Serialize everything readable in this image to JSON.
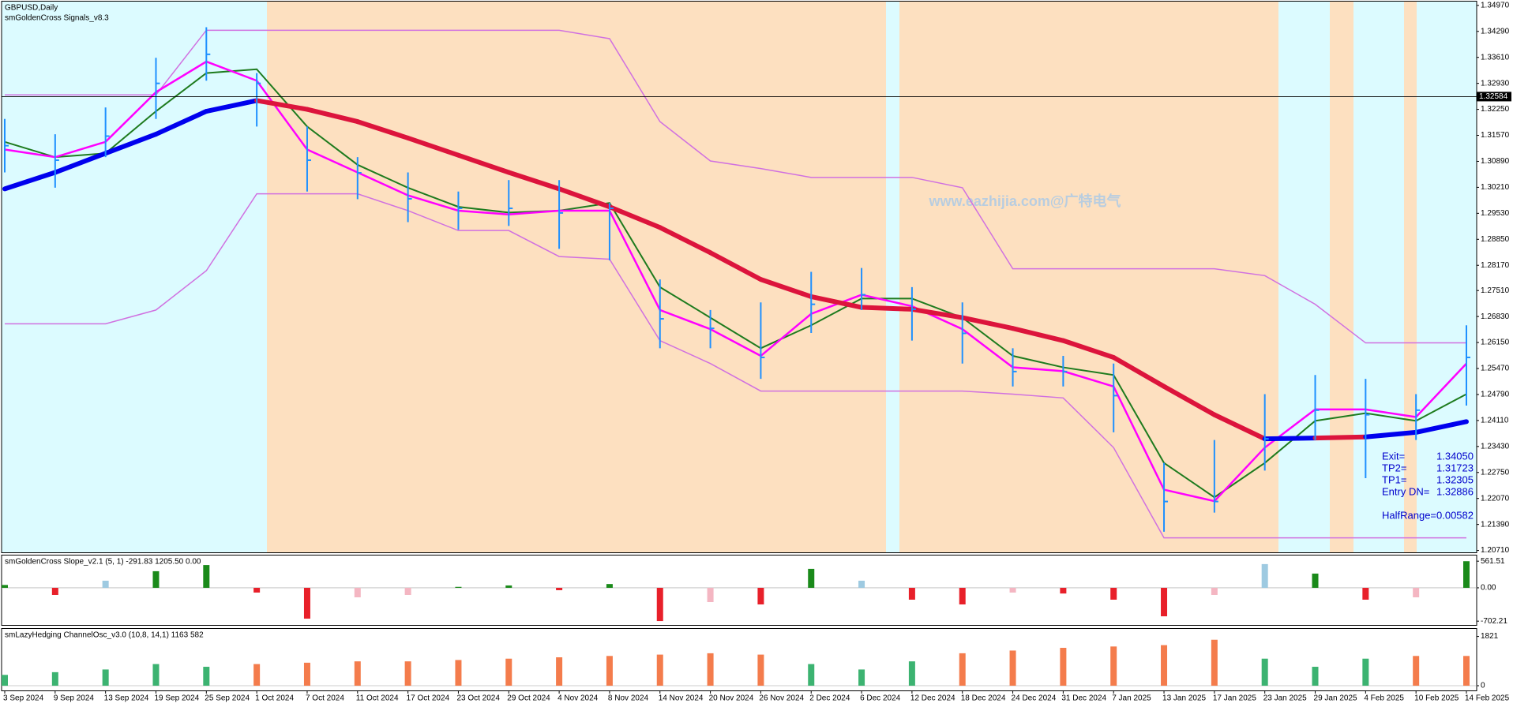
{
  "header": {
    "symbol": "GBPUSD,Daily",
    "indicator": "smGoldenCross Signals_v8.3"
  },
  "watermark": "www.eazhijia.com@广特电气",
  "chart_data": [
    {
      "type": "ohlc",
      "current_price": 1.32584,
      "categories": [
        "3 Sep 2024",
        "9 Sep 2024",
        "13 Sep 2024",
        "19 Sep 2024",
        "25 Sep 2024",
        "1 Oct 2024",
        "7 Oct 2024",
        "11 Oct 2024",
        "17 Oct 2024",
        "23 Oct 2024",
        "29 Oct 2024",
        "4 Nov 2024",
        "8 Nov 2024",
        "14 Nov 2024",
        "20 Nov 2024",
        "26 Nov 2024",
        "2 Dec 2024",
        "6 Dec 2024",
        "12 Dec 2024",
        "18 Dec 2024",
        "24 Dec 2024",
        "31 Dec 2024",
        "7 Jan 2025",
        "13 Jan 2025",
        "17 Jan 2025",
        "23 Jan 2025",
        "29 Jan 2025",
        "4 Feb 2025",
        "10 Feb 2025",
        "14 Feb 2025"
      ],
      "high": [
        1.32,
        1.316,
        1.323,
        1.336,
        1.344,
        1.332,
        1.318,
        1.31,
        1.306,
        1.301,
        1.304,
        1.304,
        1.298,
        1.278,
        1.27,
        1.272,
        1.28,
        1.281,
        1.276,
        1.272,
        1.26,
        1.258,
        1.256,
        1.23,
        1.236,
        1.248,
        1.253,
        1.252,
        1.248,
        1.266
      ],
      "low": [
        1.306,
        1.302,
        1.31,
        1.32,
        1.33,
        1.318,
        1.301,
        1.299,
        1.293,
        1.291,
        1.292,
        1.286,
        1.283,
        1.26,
        1.26,
        1.252,
        1.264,
        1.27,
        1.262,
        1.256,
        1.25,
        1.25,
        1.238,
        1.212,
        1.217,
        1.228,
        1.236,
        1.226,
        1.236,
        1.245
      ],
      "close": [
        1.313,
        1.3092,
        1.3155,
        1.3293,
        1.3369,
        1.3293,
        1.3092,
        1.3059,
        1.2991,
        1.2966,
        1.2966,
        1.2954,
        1.2966,
        1.2677,
        1.2652,
        1.2576,
        1.2715,
        1.274,
        1.2702,
        1.2639,
        1.2539,
        1.2539,
        1.2476,
        1.2199,
        1.2199,
        1.2363,
        1.2438,
        1.2426,
        1.2438,
        1.2576
      ],
      "bar_color": "#1e90ff",
      "series": [
        {
          "color": "#d070e0",
          "width": 1.5,
          "values": [
            1.3263,
            1.3263,
            1.3263,
            1.3263,
            1.3432,
            1.3432,
            1.3432,
            1.3432,
            1.3432,
            1.3432,
            1.3432,
            1.3432,
            1.341,
            1.3193,
            1.309,
            1.307,
            1.3047,
            1.3047,
            1.3047,
            1.302,
            1.2808,
            1.2808,
            1.2808,
            1.2808,
            1.2808,
            1.279,
            1.2715,
            1.2614,
            1.2614,
            1.2614
          ]
        },
        {
          "color": "#d070e0",
          "width": 1.5,
          "values": [
            1.2664,
            1.2664,
            1.2664,
            1.27,
            1.2803,
            1.3004,
            1.3004,
            1.3004,
            1.296,
            1.2908,
            1.2908,
            1.284,
            1.2833,
            1.262,
            1.256,
            1.2488,
            1.2488,
            1.2488,
            1.2488,
            1.2488,
            1.248,
            1.247,
            1.234,
            1.2104,
            1.2104,
            1.2104,
            1.2104,
            1.2104,
            1.2104,
            1.2104
          ]
        },
        {
          "color": "#1e7b1e",
          "width": 2,
          "values": [
            1.314,
            1.31,
            1.311,
            1.322,
            1.332,
            1.333,
            1.318,
            1.308,
            1.302,
            1.297,
            1.2955,
            1.296,
            1.298,
            1.276,
            1.268,
            1.26,
            1.266,
            1.273,
            1.273,
            1.268,
            1.258,
            1.255,
            1.253,
            1.23,
            1.221,
            1.23,
            1.241,
            1.243,
            1.241,
            1.248
          ]
        },
        {
          "color": "#ff00ff",
          "width": 2.5,
          "values": [
            1.312,
            1.31,
            1.314,
            1.327,
            1.335,
            1.33,
            1.312,
            1.306,
            1.3,
            1.296,
            1.295,
            1.296,
            1.296,
            1.27,
            1.265,
            1.258,
            1.269,
            1.274,
            1.271,
            1.265,
            1.255,
            1.254,
            1.25,
            1.223,
            1.22,
            1.234,
            1.244,
            1.244,
            1.242,
            1.256
          ]
        },
        {
          "width": 6,
          "values": [
            1.3017,
            1.306,
            1.311,
            1.316,
            1.322,
            1.3248,
            1.3225,
            1.3193,
            1.315,
            1.3105,
            1.306,
            1.3017,
            1.297,
            1.2916,
            1.285,
            1.278,
            1.2735,
            1.2707,
            1.2702,
            1.268,
            1.2652,
            1.262,
            1.2576,
            1.25,
            1.2426,
            1.2363,
            1.2365,
            1.2368,
            1.238,
            1.2408
          ],
          "colors": [
            "#0000ee",
            "#0000ee",
            "#0000ee",
            "#0000ee",
            "#0000ee",
            "#0000ee",
            "#dc143c",
            "#dc143c",
            "#dc143c",
            "#dc143c",
            "#dc143c",
            "#dc143c",
            "#dc143c",
            "#dc143c",
            "#dc143c",
            "#dc143c",
            "#dc143c",
            "#dc143c",
            "#dc143c",
            "#dc143c",
            "#dc143c",
            "#dc143c",
            "#dc143c",
            "#dc143c",
            "#dc143c",
            "#dc143c",
            "#0000ee",
            "#dc143c",
            "#0000ee",
            "#0000ee"
          ]
        }
      ],
      "ylim": [
        1.2066,
        1.3507
      ],
      "yticks": [
        {
          "value": 1.3497,
          "label": "1.34970"
        },
        {
          "value": 1.3429,
          "label": "1.34290"
        },
        {
          "value": 1.3361,
          "label": "1.33610"
        },
        {
          "value": 1.3293,
          "label": "1.32930"
        },
        {
          "value": 1.3225,
          "label": "1.32250"
        },
        {
          "value": 1.3157,
          "label": "1.31570"
        },
        {
          "value": 1.3089,
          "label": "1.30890"
        },
        {
          "value": 1.3021,
          "label": "1.30210"
        },
        {
          "value": 1.2953,
          "label": "1.29530"
        },
        {
          "value": 1.2885,
          "label": "1.28850"
        },
        {
          "value": 1.2817,
          "label": "1.28170"
        },
        {
          "value": 1.2751,
          "label": "1.27510"
        },
        {
          "value": 1.2683,
          "label": "1.26830"
        },
        {
          "value": 1.2615,
          "label": "1.26150"
        },
        {
          "value": 1.2547,
          "label": "1.25470"
        },
        {
          "value": 1.2479,
          "label": "1.24790"
        },
        {
          "value": 1.2411,
          "label": "1.24110"
        },
        {
          "value": 1.2343,
          "label": "1.23430"
        },
        {
          "value": 1.2275,
          "label": "1.22750"
        },
        {
          "value": 1.2207,
          "label": "1.22070"
        },
        {
          "value": 1.2139,
          "label": "1.21390"
        },
        {
          "value": 1.2071,
          "label": "1.20710"
        }
      ],
      "annotations": [
        {
          "label": "Exit=",
          "value": "1.34050"
        },
        {
          "label": "TP2=",
          "value": "1.31723"
        },
        {
          "label": "TP1=",
          "value": "1.32305"
        },
        {
          "label": "Entry DN=",
          "value": "1.32886"
        },
        {
          "label": "HalfRange=",
          "value": "0.00582"
        }
      ]
    },
    {
      "type": "bar",
      "title": "smGoldenCross Slope_v2.1 (5, 1)  -291.83 1205.50 0.00",
      "values": [
        60,
        -150,
        150,
        350,
        480,
        -100,
        -650,
        -200,
        -150,
        20,
        50,
        -50,
        80,
        -700,
        -300,
        -350,
        400,
        150,
        -250,
        -350,
        -100,
        -120,
        -250,
        -600,
        -150,
        500,
        300,
        -250,
        -200,
        561
      ],
      "colors": [
        "#1a8a1a",
        "#e8202a",
        "#9ecae1",
        "#1a8a1a",
        "#1a8a1a",
        "#e8202a",
        "#e8202a",
        "#f4b6c2",
        "#f4b6c2",
        "#1a8a1a",
        "#1a8a1a",
        "#e8202a",
        "#1a8a1a",
        "#e8202a",
        "#f4b6c2",
        "#e8202a",
        "#1a8a1a",
        "#9ecae1",
        "#e8202a",
        "#e8202a",
        "#f4b6c2",
        "#e8202a",
        "#e8202a",
        "#e8202a",
        "#f4b6c2",
        "#9ecae1",
        "#1a8a1a",
        "#e8202a",
        "#f4b6c2",
        "#1a8a1a"
      ],
      "ylim": [
        -782,
        681
      ],
      "yticks": [
        561.51,
        {
          "value": 0,
          "label": "0.00"
        },
        -702.21
      ]
    },
    {
      "type": "bar",
      "title": "smLazyHedging ChannelOsc_v3.0 (10,8, 14,1)  1163 582",
      "values": [
        400,
        500,
        600,
        800,
        700,
        800,
        850,
        900,
        900,
        950,
        1000,
        1050,
        1100,
        1150,
        1200,
        1150,
        800,
        600,
        900,
        1200,
        1300,
        1400,
        1450,
        1500,
        1700,
        1000,
        700,
        1000,
        1100,
        1100
      ],
      "colors": [
        "#3cb371",
        "#3cb371",
        "#3cb371",
        "#3cb371",
        "#3cb371",
        "#f47c4c",
        "#f47c4c",
        "#f47c4c",
        "#f47c4c",
        "#f47c4c",
        "#f47c4c",
        "#f47c4c",
        "#f47c4c",
        "#f47c4c",
        "#f47c4c",
        "#f47c4c",
        "#3cb371",
        "#3cb371",
        "#3cb371",
        "#f47c4c",
        "#f47c4c",
        "#f47c4c",
        "#f47c4c",
        "#f47c4c",
        "#f47c4c",
        "#3cb371",
        "#3cb371",
        "#3cb371",
        "#f47c4c",
        "#f47c4c"
      ],
      "ylim": [
        -175,
        2101
      ],
      "yticks": [
        1821,
        0
      ]
    }
  ]
}
